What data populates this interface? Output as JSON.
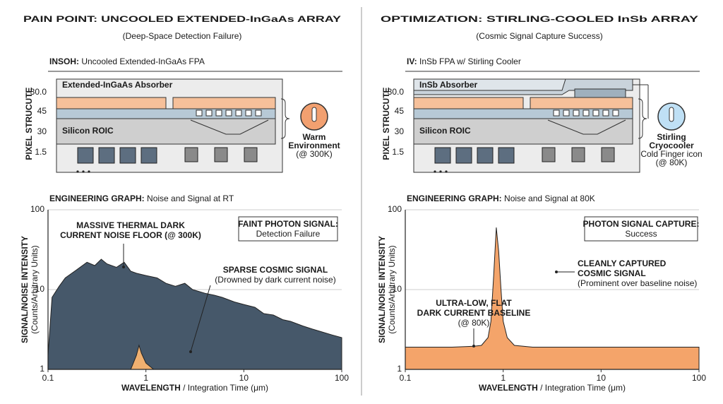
{
  "panels": [
    {
      "title": "PAIN POINT: UNCOOLED EXTENDED-InGaAs ARRAY",
      "subtitle": "(Deep-Space Detection Failure)",
      "section1": {
        "prefix": "INSOH:",
        "text": " Uncooled Extended-InGaAs FPA"
      },
      "diagram": {
        "axis_title": "PIXEL STRUCUTE",
        "levels": [
          "30.0",
          "45",
          "30",
          "1.5"
        ],
        "absorber": "Extended-InGaAs Absorber",
        "roic": "Silicon ROIC",
        "icon_label": [
          "Warm",
          "Environment",
          "(@ 300K)"
        ]
      },
      "section2": {
        "prefix": "ENGINEERING GRAPH:",
        "text": " Noise and Signal at RT"
      }
    },
    {
      "title": "OPTIMIZATION: STIRLING-COOLED InSb ARRAY",
      "subtitle": "(Cosmic Signal Capture Success)",
      "section1": {
        "prefix": "IV:",
        "text": " InSb FPA w/ Stirling Cooler"
      },
      "diagram": {
        "axis_title": "PIXEL STRUCUTE",
        "levels": [
          "30.0",
          "45",
          "30",
          "1.5"
        ],
        "absorber": "InSb Absorber",
        "roic": "Silicon ROIC",
        "icon_label": [
          "Stirling",
          "Cryocooler",
          "Cold Finger icon",
          "(@ 80K)"
        ]
      },
      "section2": {
        "prefix": "ENGINEERING GRAPH:",
        "text": " Noise and Signal at 80K"
      }
    }
  ],
  "chart_data": [
    {
      "type": "area",
      "log_x": true,
      "log_y": true,
      "grid": true,
      "ylabel": [
        "SIGNAL/NOISE INTENSITY",
        "(Counts/Arbitrary Units)"
      ],
      "xlabel": {
        "bold": "WAVELENGTH",
        "text": " / Integration Time (μm)"
      },
      "xlim": [
        0.1,
        100
      ],
      "xticks": [
        0.1,
        1,
        10,
        100
      ],
      "ylim": [
        1,
        100
      ],
      "yticks": [
        1,
        10,
        100
      ],
      "series": [
        {
          "color": "#46586a",
          "x": [
            0.1,
            0.11,
            0.13,
            0.15,
            0.2,
            0.25,
            0.3,
            0.35,
            0.4,
            0.5,
            0.6,
            0.7,
            0.8,
            1,
            1.3,
            1.6,
            2,
            2.5,
            3,
            4,
            5,
            6,
            8,
            10,
            13,
            16,
            20,
            25,
            30,
            40,
            50,
            60,
            80,
            100
          ],
          "values": [
            1.5,
            8,
            11,
            14,
            18,
            22,
            20,
            24,
            21,
            19,
            22,
            17,
            16,
            15,
            14,
            12,
            11,
            12,
            10,
            9,
            8.5,
            8,
            7,
            6.5,
            6,
            5,
            4.8,
            4.2,
            4,
            3.5,
            3.2,
            3,
            2.7,
            2.5
          ]
        },
        {
          "color": "#f0b070",
          "x": [
            0.7,
            0.8,
            0.85,
            0.9,
            1,
            1.2
          ],
          "values": [
            1,
            1.5,
            2,
            1.6,
            1.2,
            1
          ]
        }
      ],
      "annotations": [
        {
          "lines": [
            "MASSIVE THERMAL DARK",
            "CURRENT NOISE FLOOR (@ 300K)"
          ]
        },
        {
          "lines": [
            "FAINT PHOTON SIGNAL:",
            "Detection Failure"
          ],
          "boxed": true
        },
        {
          "lines": [
            "SPARSE COSMIC SIGNAL",
            "(Drowned by dark current noise)"
          ]
        }
      ]
    },
    {
      "type": "area",
      "log_x": true,
      "log_y": true,
      "grid": true,
      "ylabel": [
        "SIGNAL/NOISE INTENSITY",
        "(Counts/Arbitrary Units)"
      ],
      "xlabel": {
        "bold": "WAVELENGTH",
        "text": " / Integration Time (μm)"
      },
      "xlim": [
        0.1,
        100
      ],
      "xticks": [
        0.1,
        1,
        10,
        100
      ],
      "ylim": [
        1,
        100
      ],
      "yticks": [
        1,
        10,
        100
      ],
      "series": [
        {
          "color": "#c9c9c9",
          "x": [
            0.1,
            100
          ],
          "values": [
            1.9,
            1.9
          ]
        },
        {
          "color": "#f4a46a",
          "x": [
            0.1,
            0.2,
            0.3,
            0.5,
            0.6,
            0.7,
            0.75,
            0.8,
            0.85,
            0.9,
            0.95,
            1,
            1.1,
            1.3,
            2,
            5,
            10,
            30,
            100
          ],
          "values": [
            1.9,
            1.9,
            1.9,
            1.95,
            2,
            2.5,
            4,
            15,
            60,
            30,
            10,
            4,
            2.5,
            2,
            1.9,
            1.9,
            1.9,
            1.9,
            1.9
          ]
        }
      ],
      "annotations": [
        {
          "lines": [
            "PHOTON SIGNAL CAPTURE:",
            "Success"
          ],
          "boxed": true
        },
        {
          "lines": [
            "CLEANLY CAPTURED",
            "COSMIC SIGNAL",
            "(Prominent over baseline noise)"
          ]
        },
        {
          "lines": [
            "ULTRA-LOW, FLAT",
            "DARK CURRENT BASELINE",
            "(@ 80K)"
          ]
        }
      ]
    }
  ]
}
